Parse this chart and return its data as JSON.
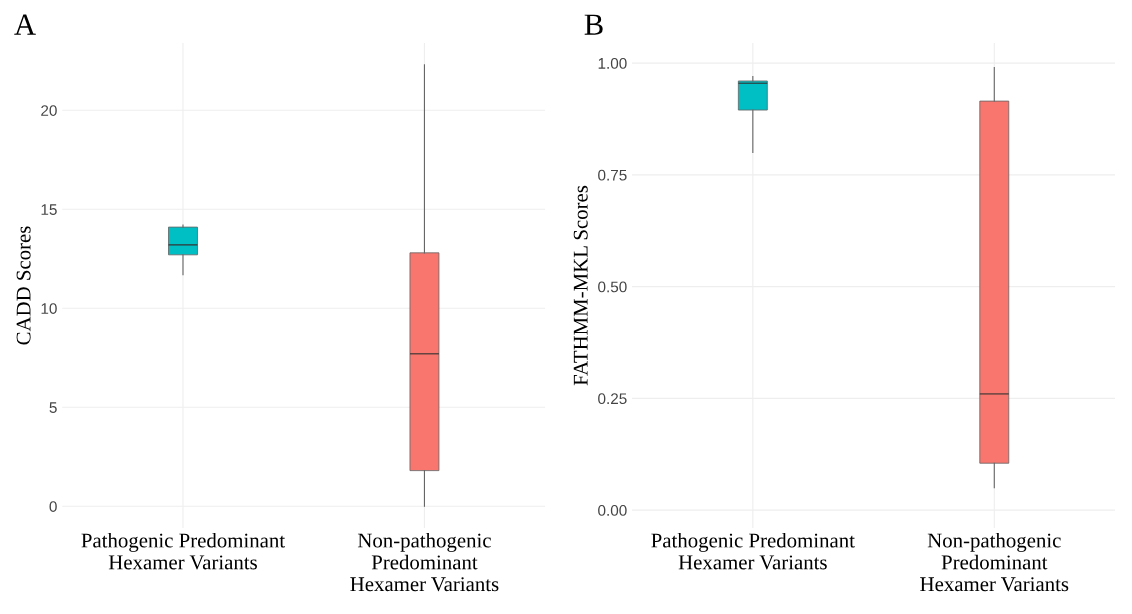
{
  "chart_data": [
    {
      "type": "box",
      "title": "A",
      "ylabel": "CADD Scores",
      "categories": [
        "Pathogenic Predominant\nHexamer Variants",
        "Non-pathogenic\nPredominant\nHexamer Variants"
      ],
      "colors": [
        "#00bfc4",
        "#f8766d"
      ],
      "boxes": [
        {
          "low": 11.7,
          "q1": 12.7,
          "median": 13.2,
          "q3": 14.1,
          "high": 14.2
        },
        {
          "low": 0,
          "q1": 1.8,
          "median": 7.7,
          "q3": 12.8,
          "high": 22.3
        }
      ],
      "ylim": [
        -1.1,
        23.4
      ],
      "yticks": [
        0,
        5,
        10,
        15,
        20
      ],
      "grid": true
    },
    {
      "type": "box",
      "title": "B",
      "ylabel": "FATHMM-MKL Scores",
      "categories": [
        "Pathogenic Predominant\nHexamer Variants",
        "Non-pathogenic\nPredominant\nHexamer Variants"
      ],
      "colors": [
        "#00bfc4",
        "#f8766d"
      ],
      "boxes": [
        {
          "low": 0.8,
          "q1": 0.895,
          "median": 0.955,
          "q3": 0.96,
          "high": 0.97
        },
        {
          "low": 0.05,
          "q1": 0.105,
          "median": 0.26,
          "q3": 0.915,
          "high": 0.99
        }
      ],
      "ylim": [
        -0.04,
        1.045
      ],
      "yticks": [
        {
          "value": 0,
          "label": "0.00"
        },
        {
          "value": 0.25,
          "label": "0.25"
        },
        {
          "value": 0.5,
          "label": "0.50"
        },
        {
          "value": 0.75,
          "label": "0.75"
        },
        {
          "value": 1,
          "label": "1.00"
        }
      ],
      "grid": true
    }
  ]
}
